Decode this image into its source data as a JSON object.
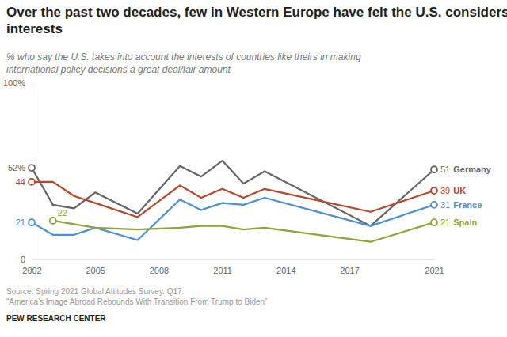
{
  "chart_data": {
    "type": "line",
    "title": "Over the past two decades, few in Western Europe have felt the U.S. considers their interests",
    "subtitle": "% who say the U.S. takes into account the interests of countries like theirs in making international policy decisions a great deal/fair amount",
    "source": [
      "Source: Spring 2021 Global Attitudes Survey. Q17.",
      "“America’s Image Abroad Rebounds With Transition From Trump to Biden”"
    ],
    "credit": "PEW RESEARCH CENTER",
    "x": [
      2002,
      2003,
      2004,
      2005,
      2007,
      2009,
      2010,
      2011,
      2012,
      2013,
      2018,
      2021
    ],
    "xlim": [
      2002,
      2021
    ],
    "xticks": [
      2002,
      2005,
      2008,
      2011,
      2014,
      2017,
      2021
    ],
    "ylim": [
      0,
      100
    ],
    "yticks": [
      0,
      {
        "value": 100,
        "label": "100%"
      }
    ],
    "grid": false,
    "series": [
      {
        "name": "Germany",
        "color": "#636466",
        "values": [
          52,
          31,
          29,
          38,
          26,
          53,
          47,
          56,
          43,
          50,
          19,
          51
        ],
        "value_labels": [
          "52%",
          null,
          null,
          null,
          null,
          null,
          null,
          null,
          null,
          null,
          null,
          "51"
        ]
      },
      {
        "name": "UK",
        "color": "#b8452c",
        "values": [
          44,
          44,
          36,
          32,
          24,
          42,
          35,
          40,
          35,
          40,
          27,
          39
        ],
        "value_labels": [
          "44",
          null,
          null,
          null,
          null,
          null,
          null,
          null,
          null,
          null,
          null,
          "39"
        ]
      },
      {
        "name": "France",
        "color": "#4d8fd3",
        "values": [
          21,
          14,
          14,
          18,
          11,
          34,
          28,
          32,
          31,
          35,
          19,
          31
        ],
        "value_labels": [
          "21",
          null,
          null,
          null,
          null,
          null,
          null,
          null,
          null,
          null,
          null,
          "31"
        ]
      },
      {
        "name": "Spain",
        "color": "#8ea33b",
        "values": [
          null,
          22,
          20,
          18,
          17,
          18,
          19,
          19,
          17,
          18,
          10,
          21
        ],
        "value_labels": [
          null,
          "22",
          null,
          null,
          null,
          null,
          null,
          null,
          null,
          null,
          null,
          "21"
        ]
      }
    ]
  }
}
